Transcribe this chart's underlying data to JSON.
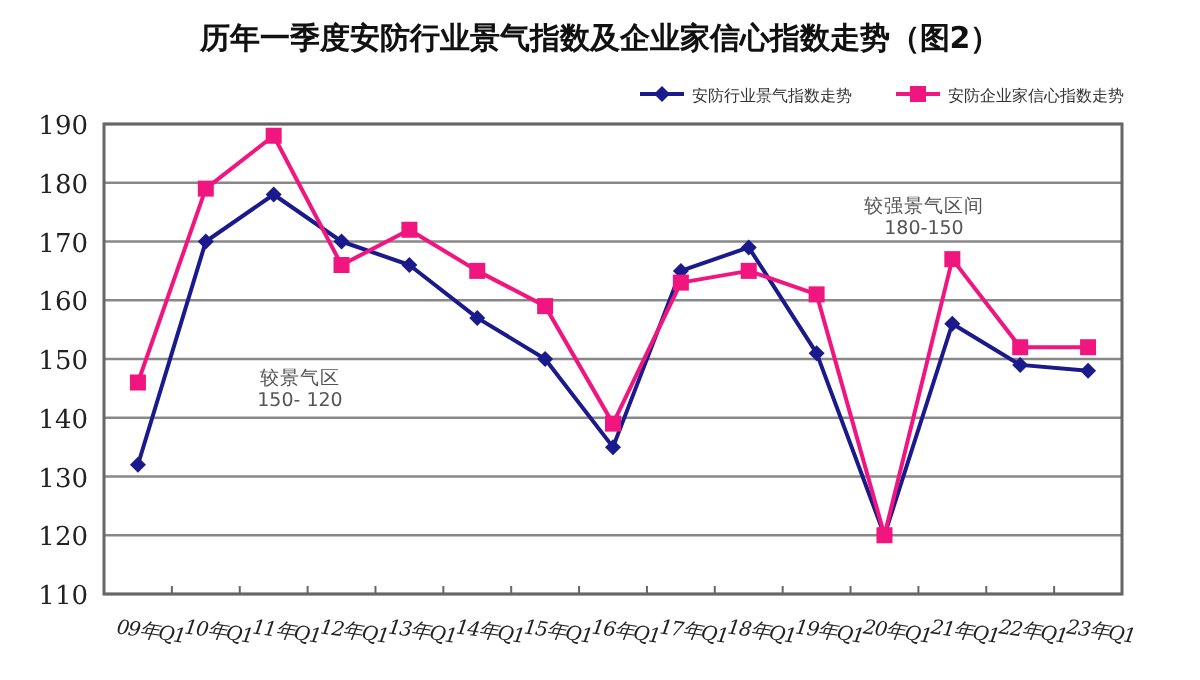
{
  "chart_data": {
    "type": "line",
    "title": "历年一季度安防行业景气指数及企业家信心指数走势（图2）",
    "categories": [
      "09年Q1",
      "10年Q1",
      "11年Q1",
      "12年Q1",
      "13年Q1",
      "14年Q1",
      "15年Q1",
      "16年Q1",
      "17年Q1",
      "18年Q1",
      "19年Q1",
      "20年Q1",
      "21年Q1",
      "22年Q1",
      "23年Q1"
    ],
    "series": [
      {
        "name": "安防行业景气指数走势",
        "color": "#1a1a8c",
        "marker": "diamond",
        "values": [
          132,
          170,
          178,
          170,
          166,
          157,
          150,
          135,
          165,
          169,
          151,
          120,
          156,
          149,
          148
        ]
      },
      {
        "name": "安防企业家信心指数走势",
        "color": "#f0157f",
        "marker": "square",
        "values": [
          146,
          179,
          188,
          166,
          172,
          165,
          159,
          139,
          163,
          165,
          161,
          120,
          167,
          152,
          152
        ]
      }
    ],
    "ylim": [
      110,
      190
    ],
    "yticks": [
      110,
      120,
      130,
      140,
      150,
      160,
      170,
      180,
      190
    ],
    "grid": "y",
    "legend": "top right",
    "annotations": [
      "较景气区\n150- 120",
      "较强景气区间\n180-150"
    ]
  }
}
